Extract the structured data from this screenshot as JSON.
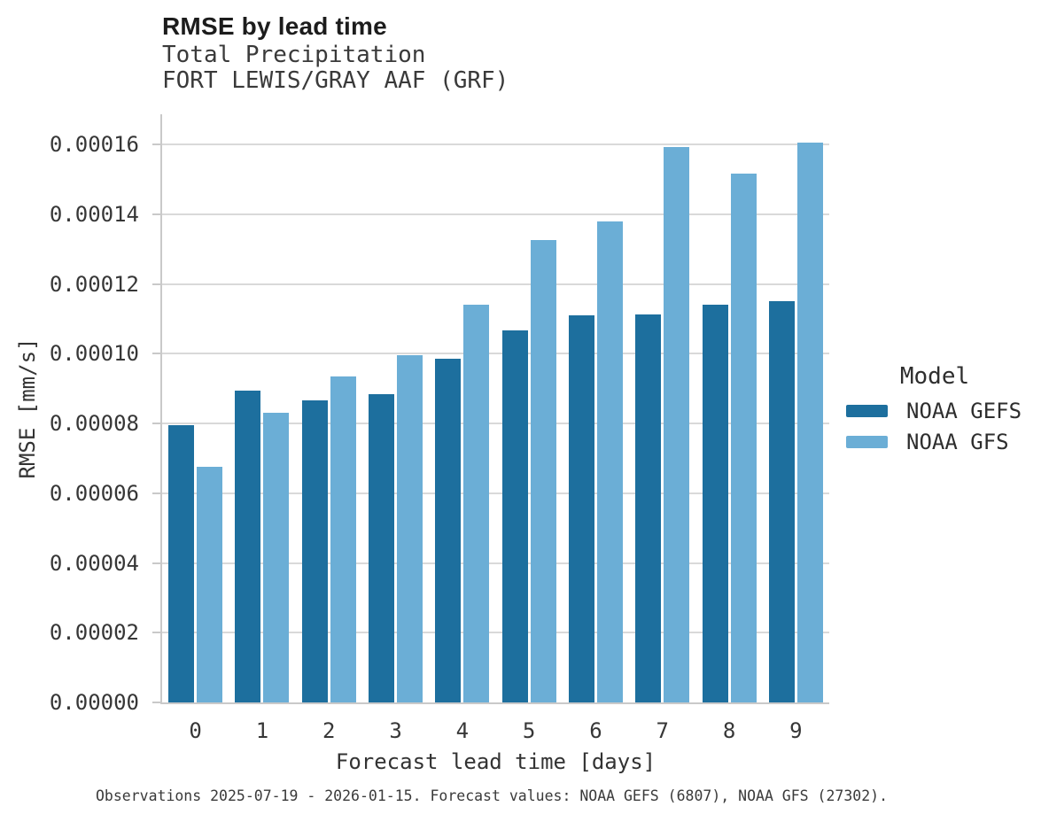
{
  "figure": {
    "title": "RMSE by lead time",
    "subtitle": "Total Precipitation",
    "station": "FORT LEWIS/GRAY AAF (GRF)",
    "caption": "Observations 2025-07-19 - 2026-01-15. Forecast values: NOAA GEFS (6807), NOAA GFS (27302)."
  },
  "chart_data": {
    "type": "bar",
    "title": "RMSE by lead time",
    "subtitle": "Total Precipitation",
    "station": "FORT LEWIS/GRAY AAF (GRF)",
    "xlabel": "Forecast lead time [days]",
    "ylabel": "RMSE [mm/s]",
    "categories": [
      "0",
      "1",
      "2",
      "3",
      "4",
      "5",
      "6",
      "7",
      "8",
      "9"
    ],
    "series": [
      {
        "name": "NOAA GEFS",
        "color": "#1d6f9e",
        "values": [
          7.96e-05,
          8.94e-05,
          8.67e-05,
          8.84e-05,
          9.86e-05,
          0.0001066,
          0.000111,
          0.0001113,
          0.000114,
          0.0001152
        ]
      },
      {
        "name": "NOAA GFS",
        "color": "#6baed6",
        "values": [
          6.76e-05,
          8.32e-05,
          9.34e-05,
          9.96e-05,
          0.0001141,
          0.0001326,
          0.000138,
          0.0001594,
          0.0001516,
          0.0001606
        ]
      }
    ],
    "ylim": [
      0,
      0.0001687
    ],
    "yticks": [
      0.0,
      2e-05,
      4e-05,
      6e-05,
      8e-05,
      0.0001,
      0.00012,
      0.00014,
      0.00016
    ],
    "ytick_labels": [
      "0.00000",
      "0.00002",
      "0.00004",
      "0.00006",
      "0.00008",
      "0.00010",
      "0.00012",
      "0.00014",
      "0.00016"
    ],
    "grid": "horizontal",
    "legend_title": "Model",
    "legend_position": "right"
  },
  "colors": {
    "gefs_bar": "#1d6f9e",
    "gfs_bar": "#6baed6",
    "gridline": "#d9d9d9",
    "axis_spine": "#c9c9c9",
    "text": "#373737"
  }
}
